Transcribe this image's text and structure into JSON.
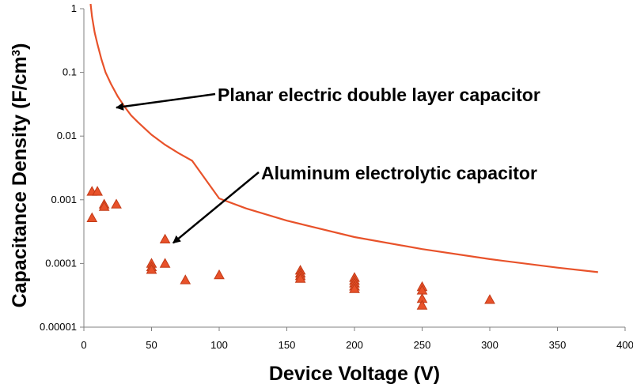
{
  "chart_data": {
    "type": "scatter",
    "title": "",
    "xlabel": "Device Voltage (V)",
    "ylabel_main": "Capacitance Density (F/cm",
    "ylabel_sup": "3",
    "ylabel_close": ")",
    "xlim": [
      0,
      400
    ],
    "ylim": [
      1e-05,
      1
    ],
    "yscale": "log",
    "grid": false,
    "legend": "none",
    "x_ticks": [
      {
        "value": 0,
        "label": "0"
      },
      {
        "value": 50,
        "label": "50"
      },
      {
        "value": 100,
        "label": "100"
      },
      {
        "value": 150,
        "label": "150"
      },
      {
        "value": 200,
        "label": "200"
      },
      {
        "value": 250,
        "label": "250"
      },
      {
        "value": 300,
        "label": "300"
      },
      {
        "value": 350,
        "label": "350"
      },
      {
        "value": 400,
        "label": "400"
      }
    ],
    "y_ticks": [
      {
        "value": 1,
        "label": "1"
      },
      {
        "value": 0.1,
        "label": "0.1"
      },
      {
        "value": 0.01,
        "label": "0.01"
      },
      {
        "value": 0.001,
        "label": "0.001"
      },
      {
        "value": 0.0001,
        "label": "0.0001"
      },
      {
        "value": 1e-05,
        "label": "0.00001"
      }
    ],
    "colors": {
      "series": "#e8522a",
      "marker_stroke": "#c23a17",
      "axis": "#808080",
      "arrow": "#000000"
    },
    "series": [
      {
        "kind": "line",
        "points": [
          [
            5,
            1.2
          ],
          [
            6,
            0.75
          ],
          [
            8,
            0.42
          ],
          [
            10,
            0.28
          ],
          [
            13,
            0.16
          ],
          [
            16,
            0.1
          ],
          [
            20,
            0.066
          ],
          [
            25,
            0.042
          ],
          [
            30,
            0.029
          ],
          [
            35,
            0.021
          ],
          [
            40,
            0.0165
          ],
          [
            50,
            0.0105
          ],
          [
            60,
            0.0073
          ],
          [
            70,
            0.0054
          ],
          [
            80,
            0.0041
          ],
          [
            100,
            0.00105
          ],
          [
            120,
            0.00073
          ],
          [
            150,
            0.00047
          ],
          [
            200,
            0.00026
          ],
          [
            250,
            0.000168
          ],
          [
            300,
            0.000117
          ],
          [
            350,
            8.6e-05
          ],
          [
            380,
            7.3e-05
          ]
        ]
      },
      {
        "kind": "scatter",
        "marker": "triangle",
        "points": [
          [
            6,
            0.00135
          ],
          [
            10,
            0.00135
          ],
          [
            6,
            0.00052
          ],
          [
            15,
            0.00085
          ],
          [
            15,
            0.00078
          ],
          [
            24,
            0.00085
          ],
          [
            50,
            0.0001
          ],
          [
            50,
            8.8e-05
          ],
          [
            50,
            8e-05
          ],
          [
            60,
            0.00024
          ],
          [
            60,
            0.0001
          ],
          [
            75,
            5.5e-05
          ],
          [
            100,
            6.6e-05
          ],
          [
            160,
            7.8e-05
          ],
          [
            160,
            7e-05
          ],
          [
            160,
            6.4e-05
          ],
          [
            160,
            5.8e-05
          ],
          [
            200,
            6e-05
          ],
          [
            200,
            5.4e-05
          ],
          [
            200,
            4.9e-05
          ],
          [
            200,
            4.4e-05
          ],
          [
            200,
            4e-05
          ],
          [
            250,
            4.3e-05
          ],
          [
            250,
            3.8e-05
          ],
          [
            250,
            2.8e-05
          ],
          [
            250,
            2.2e-05
          ],
          [
            300,
            2.7e-05
          ]
        ]
      }
    ],
    "annotations": [
      {
        "text": "Planar electric double layer capacitor",
        "arrow_to": [
          24,
          0.028
        ]
      },
      {
        "text": "Aluminum electrolytic capacitor",
        "arrow_to": [
          66,
          0.00021
        ]
      }
    ]
  }
}
